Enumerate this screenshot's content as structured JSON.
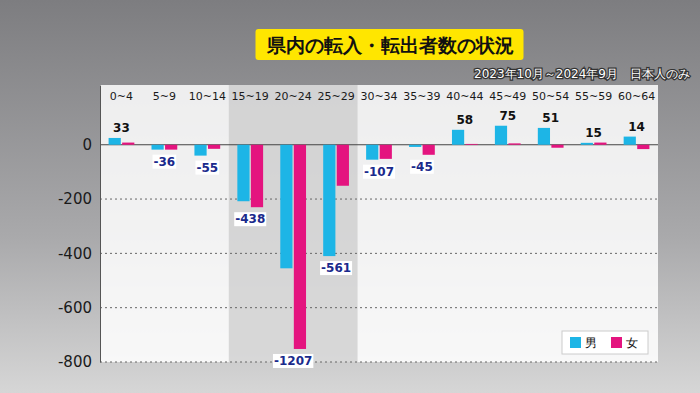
{
  "chart_data": {
    "type": "bar",
    "title": "県内の転入・転出者数の状況",
    "subtitle": "2023年10月～2024年9月　日本人のみ",
    "categories": [
      "0~4",
      "5~9",
      "10~14",
      "15~19",
      "20~24",
      "25~29",
      "30~34",
      "35~39",
      "40~44",
      "45~49",
      "50~54",
      "55~59",
      "60~64"
    ],
    "series": [
      {
        "name": "男",
        "color": "#1db5e6",
        "values": [
          25,
          -18,
          -40,
          -208,
          -455,
          -410,
          -55,
          -8,
          55,
          70,
          62,
          7,
          30
        ]
      },
      {
        "name": "女",
        "color": "#e4147f",
        "values": [
          8,
          -18,
          -15,
          -230,
          -752,
          -151,
          -52,
          -37,
          3,
          5,
          -11,
          8,
          -16
        ]
      }
    ],
    "totals": [
      33,
      -36,
      -55,
      -438,
      -1207,
      -561,
      -107,
      -45,
      58,
      75,
      51,
      15,
      14
    ],
    "ylim": [
      -800,
      220
    ],
    "yticks": [
      -800,
      -600,
      -400,
      -200,
      0
    ],
    "grid": true,
    "legend": "lower right"
  }
}
